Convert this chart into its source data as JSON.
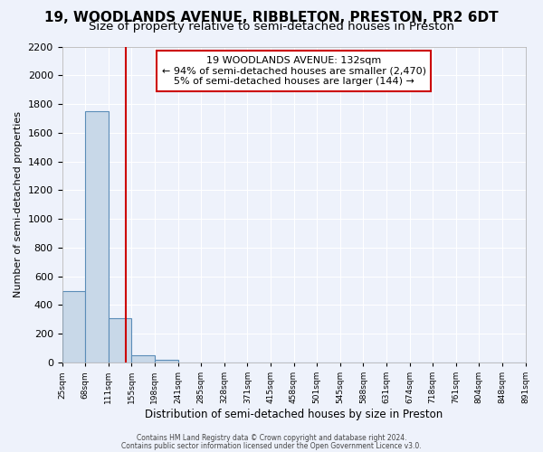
{
  "title": "19, WOODLANDS AVENUE, RIBBLETON, PRESTON, PR2 6DT",
  "subtitle": "Size of property relative to semi-detached houses in Preston",
  "xlabel": "Distribution of semi-detached houses by size in Preston",
  "ylabel": "Number of semi-detached properties",
  "bin_labels": [
    "25sqm",
    "68sqm",
    "111sqm",
    "155sqm",
    "198sqm",
    "241sqm",
    "285sqm",
    "328sqm",
    "371sqm",
    "415sqm",
    "458sqm",
    "501sqm",
    "545sqm",
    "588sqm",
    "631sqm",
    "674sqm",
    "718sqm",
    "761sqm",
    "804sqm",
    "848sqm",
    "891sqm"
  ],
  "bar_heights": [
    500,
    1750,
    310,
    50,
    20,
    0,
    0,
    0,
    0,
    0,
    0,
    0,
    0,
    0,
    0,
    0,
    0,
    0,
    0,
    0
  ],
  "bar_color": "#c8d8e8",
  "bar_edge_color": "#5b8db8",
  "property_line_x": 2.77,
  "property_line_color": "#cc0000",
  "ylim": [
    0,
    2200
  ],
  "yticks": [
    0,
    200,
    400,
    600,
    800,
    1000,
    1200,
    1400,
    1600,
    1800,
    2000,
    2200
  ],
  "annotation_title": "19 WOODLANDS AVENUE: 132sqm",
  "annotation_line1": "← 94% of semi-detached houses are smaller (2,470)",
  "annotation_line2": "5% of semi-detached houses are larger (144) →",
  "annotation_box_color": "#ffffff",
  "annotation_box_edge": "#cc0000",
  "footer_line1": "Contains HM Land Registry data © Crown copyright and database right 2024.",
  "footer_line2": "Contains public sector information licensed under the Open Government Licence v3.0.",
  "background_color": "#eef2fb",
  "grid_color": "#ffffff",
  "title_fontsize": 11,
  "subtitle_fontsize": 9.5
}
